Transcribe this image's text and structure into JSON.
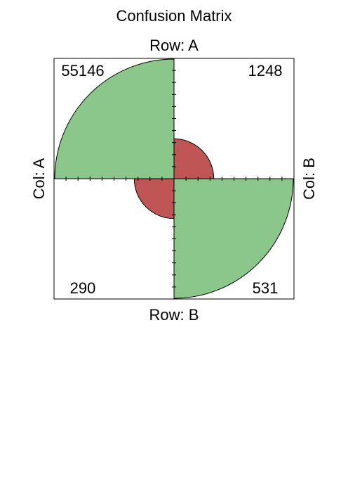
{
  "chart_data": {
    "type": "fourfold",
    "title": "Confusion Matrix",
    "row_labels": [
      "Row: A",
      "Row: B"
    ],
    "col_labels": [
      "Col: A",
      "Col: B"
    ],
    "cells": [
      {
        "row": "A",
        "col": "A",
        "quadrant": "top-left",
        "count": 55146,
        "label": "55146",
        "color": "#8bc68b"
      },
      {
        "row": "A",
        "col": "B",
        "quadrant": "top-right",
        "count": 1248,
        "label": "1248",
        "color": "#bf5555"
      },
      {
        "row": "B",
        "col": "A",
        "quadrant": "bottom-left",
        "count": 290,
        "label": "290",
        "color": "#bf5555"
      },
      {
        "row": "B",
        "col": "B",
        "quadrant": "bottom-right",
        "count": 531,
        "label": "531",
        "color": "#8bc68b"
      }
    ],
    "ticks_per_axis_half": 10
  }
}
